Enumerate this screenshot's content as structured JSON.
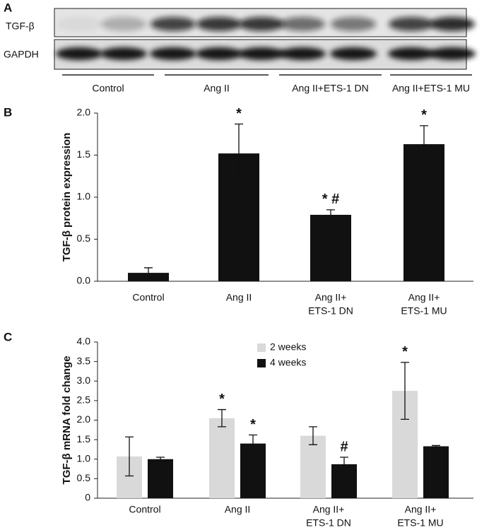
{
  "blot": {
    "panel": "A",
    "rows": [
      "TGF-β",
      "GAPDH"
    ],
    "groups": [
      "Control",
      "Ang II",
      "Ang II+ETS-1 DN",
      "Ang II+ETS-1 MU"
    ]
  },
  "chart_data": [
    {
      "type": "bar",
      "panel": "B",
      "ylabel": "TGF-β protein expression",
      "categories": [
        [
          "Control"
        ],
        [
          "Ang II"
        ],
        [
          "Ang II+",
          "ETS-1 DN"
        ],
        [
          "Ang II+",
          "ETS-1 MU"
        ]
      ],
      "values": [
        0.1,
        1.52,
        0.79,
        1.63
      ],
      "errors": [
        0.06,
        0.35,
        0.06,
        0.22
      ],
      "annotations": [
        null,
        "*",
        "* #",
        "*"
      ],
      "color": "#111111",
      "ylim": [
        0,
        2
      ],
      "yticks": [
        {
          "value": 0,
          "label": "0.0"
        },
        {
          "value": 0.5,
          "label": "0.5"
        },
        {
          "value": 1,
          "label": "1.0"
        },
        {
          "value": 1.5,
          "label": "1.5"
        },
        {
          "value": 2,
          "label": "2.0"
        }
      ]
    },
    {
      "type": "bar",
      "panel": "C",
      "ylabel": "TGF-β mRNA fold change",
      "categories": [
        [
          "Control"
        ],
        [
          "Ang II"
        ],
        [
          "Ang II+",
          "ETS-1 DN"
        ],
        [
          "Ang II+",
          "ETS-1 MU"
        ]
      ],
      "series": [
        {
          "name": "2 weeks",
          "color": "#d9d9d9",
          "values": [
            1.07,
            2.05,
            1.6,
            2.75
          ],
          "errors": [
            0.5,
            0.22,
            0.23,
            0.73
          ],
          "annotations": [
            null,
            "*",
            null,
            "*"
          ]
        },
        {
          "name": "4 weeks",
          "color": "#111111",
          "values": [
            1.0,
            1.4,
            0.87,
            1.33
          ],
          "errors": [
            0.05,
            0.22,
            0.18,
            0.02
          ],
          "annotations": [
            null,
            "*",
            "#",
            null
          ]
        }
      ],
      "ylim": [
        0,
        4
      ],
      "yticks": [
        0,
        0.5,
        {
          "value": 1,
          "label": "1.0"
        },
        1.5,
        {
          "value": 2,
          "label": "2.0"
        },
        2.5,
        {
          "value": 3,
          "label": "3.0"
        },
        3.5,
        {
          "value": 4,
          "label": "4.0"
        }
      ]
    }
  ]
}
